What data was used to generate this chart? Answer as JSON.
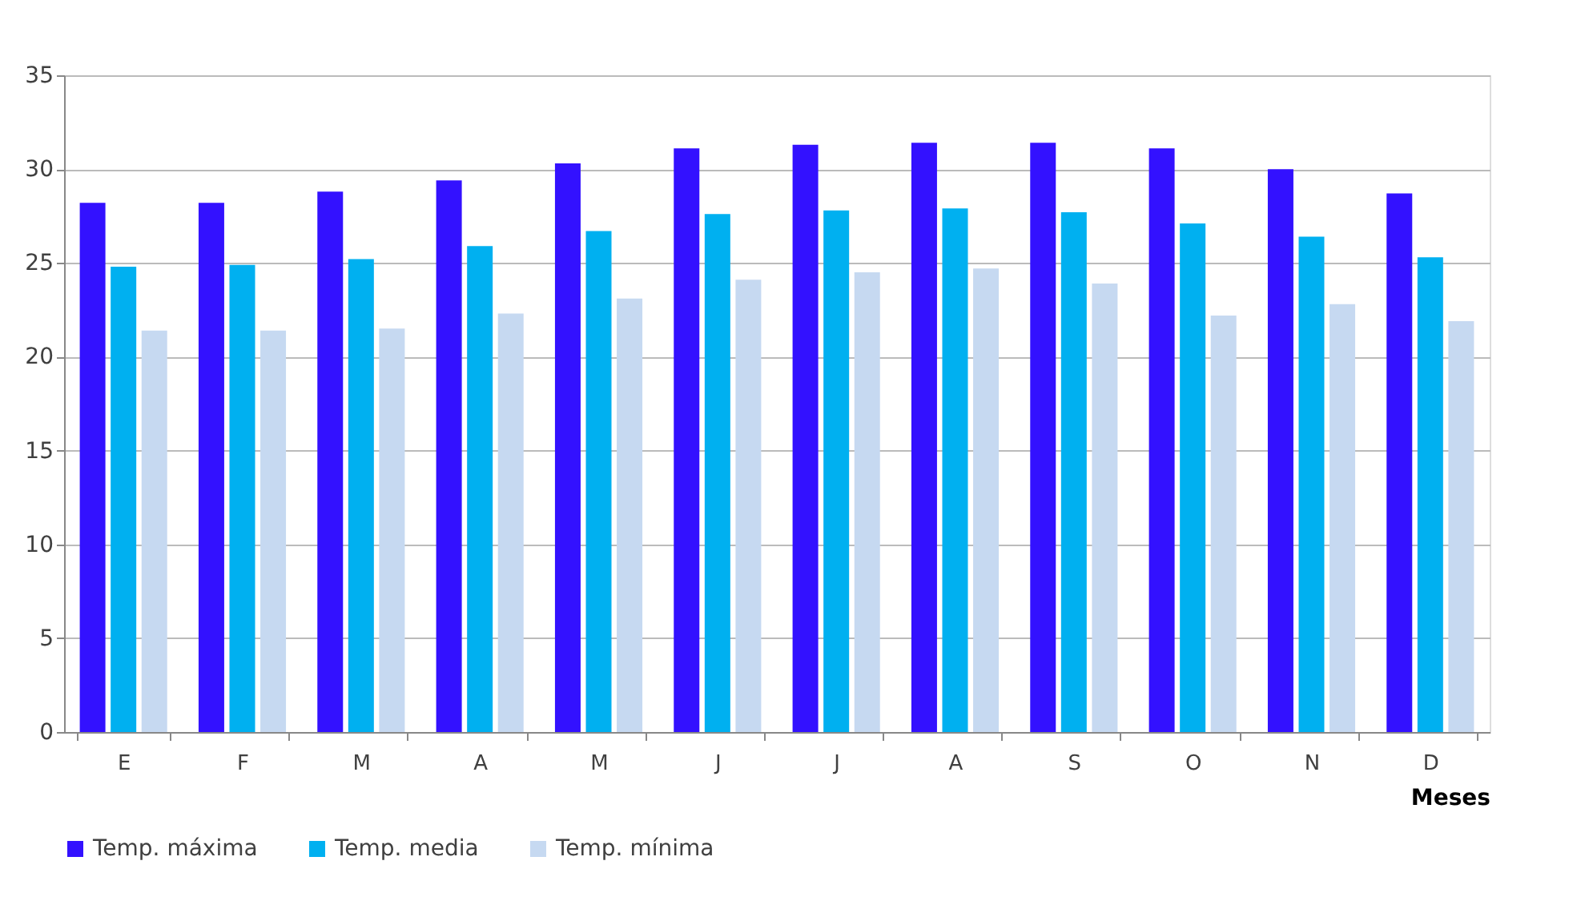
{
  "chart_data": {
    "type": "bar",
    "xlabel": "Meses",
    "categories": [
      "E",
      "F",
      "M",
      "A",
      "M",
      "J",
      "J",
      "A",
      "S",
      "O",
      "N",
      "D"
    ],
    "series": [
      {
        "name": "Temp. máxima",
        "color": "#3311ff",
        "values": [
          28.2,
          28.2,
          28.8,
          29.4,
          30.3,
          31.1,
          31.3,
          31.4,
          31.4,
          31.1,
          30.0,
          28.7
        ]
      },
      {
        "name": "Temp. media",
        "color": "#00b0f0",
        "values": [
          24.8,
          24.9,
          25.2,
          25.9,
          26.7,
          27.6,
          27.8,
          27.9,
          27.7,
          27.1,
          26.4,
          25.3
        ]
      },
      {
        "name": "Temp. mínima",
        "color": "#c6d9f1",
        "values": [
          21.4,
          21.4,
          21.5,
          22.3,
          23.1,
          24.1,
          24.5,
          24.7,
          23.9,
          22.2,
          22.8,
          21.9
        ]
      }
    ],
    "ylim": [
      0,
      35
    ],
    "yticks": [
      0,
      5,
      10,
      15,
      20,
      25,
      30,
      35
    ],
    "grid": "y",
    "legend": "bottom"
  }
}
